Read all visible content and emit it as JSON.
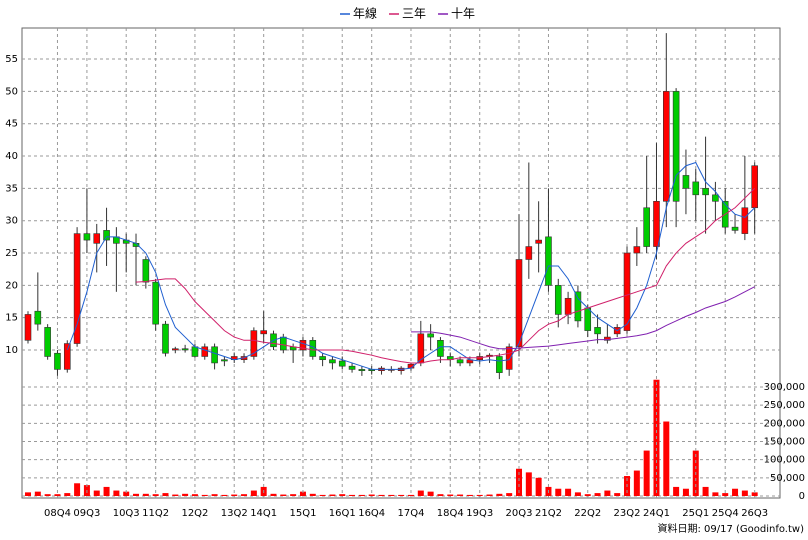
{
  "chart_data": [
    {
      "type": "candlestick",
      "categories": [
        null,
        null,
        null,
        "08Q4",
        null,
        null,
        "09Q3",
        null,
        null,
        null,
        "10Q3",
        null,
        null,
        "11Q2",
        null,
        null,
        null,
        "12Q2",
        null,
        null,
        null,
        "13Q2",
        null,
        null,
        "14Q1",
        null,
        null,
        null,
        "15Q1",
        null,
        null,
        null,
        "16Q1",
        null,
        null,
        "16Q4",
        null,
        null,
        null,
        "17Q4",
        null,
        null,
        null,
        "18Q4",
        null,
        null,
        "19Q3",
        null,
        null,
        null,
        "20Q3",
        null,
        null,
        "21Q2",
        null,
        null,
        null,
        "22Q2",
        null,
        null,
        null,
        "23Q2",
        null,
        null,
        "24Q1",
        null,
        null,
        null,
        "25Q1",
        null,
        null,
        "25Q4",
        null,
        null,
        "26Q3"
      ],
      "open": [
        11.5,
        16,
        13.5,
        9.5,
        7,
        11,
        28,
        26.5,
        28.5,
        27.5,
        27,
        26.5,
        24,
        20.5,
        14,
        10,
        10.2,
        10.5,
        9,
        10.5,
        8.5,
        8.5,
        8.5,
        9,
        12.5,
        12.5,
        12,
        10.5,
        10,
        11.5,
        9,
        8.5,
        8.3,
        7.5,
        7,
        7,
        6.8,
        7,
        6.8,
        7.2,
        8,
        12.5,
        11.5,
        9,
        8.5,
        8,
        8.5,
        9,
        9,
        7,
        10.5,
        24,
        26.5,
        27.5,
        20,
        15.5,
        19,
        16.5,
        13.5,
        11.5,
        12.5,
        13,
        25,
        32,
        26,
        33,
        50,
        37,
        36,
        35,
        34,
        33,
        29,
        28,
        32
      ],
      "high": [
        16,
        22,
        14,
        10,
        11.5,
        29,
        35,
        29.5,
        32,
        29,
        28,
        28,
        24.5,
        21,
        14.5,
        10.5,
        10.8,
        11,
        11,
        11,
        9,
        9.5,
        9.5,
        13.5,
        16,
        13,
        12.5,
        11,
        12,
        12,
        9.5,
        9,
        9,
        8,
        7.5,
        7.5,
        7.5,
        7.5,
        7.5,
        8,
        14.5,
        14,
        12,
        9.5,
        9,
        9,
        9.5,
        9.5,
        9.5,
        11,
        31,
        39,
        33,
        35,
        21,
        19,
        20,
        17,
        15.5,
        14,
        14,
        26,
        29,
        40,
        42,
        59,
        50.5,
        41,
        38,
        43,
        36,
        35,
        31,
        40,
        39
      ],
      "low": [
        11,
        13,
        8.5,
        6,
        6.5,
        10.5,
        25,
        22,
        23,
        19,
        22,
        20,
        19.5,
        13,
        9,
        9.5,
        9.6,
        8.8,
        8.5,
        7,
        7.5,
        8,
        8,
        8.5,
        11,
        10,
        9.5,
        8,
        9,
        8.5,
        7.5,
        7,
        7,
        6.5,
        6,
        6.2,
        6.2,
        6.5,
        6.2,
        6.8,
        7.5,
        10,
        8,
        7.5,
        7.5,
        7.5,
        7.8,
        8,
        5.5,
        6,
        9,
        21,
        22,
        19,
        13.5,
        14,
        13.5,
        12,
        11,
        11,
        12,
        12.5,
        23,
        25,
        24,
        29,
        29,
        31,
        30,
        28,
        30,
        28,
        28,
        27,
        28
      ],
      "close": [
        15.5,
        14,
        9,
        7,
        11,
        28,
        27,
        28,
        27,
        26.5,
        26.5,
        26,
        20.5,
        14,
        9.5,
        10.2,
        10,
        9,
        10.5,
        8,
        8.3,
        9,
        9,
        13,
        13,
        10.5,
        10,
        10,
        11.5,
        9,
        8.5,
        8,
        7.5,
        7,
        6.8,
        6.8,
        7.2,
        7,
        7.2,
        7.8,
        12.5,
        12,
        9,
        8.5,
        8,
        8.5,
        9,
        9.2,
        6.5,
        10.5,
        24,
        26,
        27,
        20,
        15.5,
        18,
        14.5,
        13,
        12.5,
        12,
        13.5,
        25,
        26,
        26,
        33,
        50,
        33,
        35,
        34,
        34,
        33,
        29,
        28.5,
        32,
        38.5
      ],
      "up_color": "#ff0000",
      "down_color": "#00cc00",
      "series": [
        {
          "name": "年線",
          "color": "#1f5fd0",
          "values": [
            null,
            null,
            null,
            null,
            10,
            14,
            19,
            25,
            27.5,
            27.5,
            27,
            26.5,
            25,
            22,
            17,
            13.5,
            12,
            10.5,
            10,
            9.5,
            9,
            8.5,
            8.8,
            9.5,
            10.5,
            11.5,
            12,
            11.5,
            11,
            10.5,
            9.5,
            9,
            8.5,
            8,
            7.5,
            7,
            7,
            7,
            7,
            7.2,
            8.5,
            9.5,
            10.5,
            10.5,
            9.5,
            8.5,
            8.3,
            8.5,
            8.3,
            8.5,
            11,
            15,
            19,
            23,
            23,
            21,
            18,
            16.5,
            15,
            14,
            13,
            14,
            16.5,
            20,
            25,
            32,
            37,
            38.5,
            39,
            36,
            34.5,
            32.5,
            31,
            30.5,
            32
          ]
        },
        {
          "name": "三年",
          "color": "#d0206a",
          "values": [
            null,
            null,
            null,
            null,
            null,
            null,
            null,
            null,
            null,
            null,
            null,
            20.5,
            20.6,
            20.8,
            21,
            21,
            19.5,
            17.5,
            16,
            14.5,
            13,
            12,
            11.5,
            11.5,
            11.2,
            11,
            10.8,
            10.5,
            10.3,
            10,
            10,
            10,
            10,
            9.8,
            9.5,
            9.2,
            8.8,
            8.5,
            8.2,
            8,
            8,
            8.3,
            8.5,
            8.5,
            8.8,
            8.8,
            8.8,
            9,
            9.2,
            9.5,
            10,
            11.5,
            13,
            14,
            14.5,
            15.5,
            16,
            16.5,
            17,
            17.5,
            18,
            18.5,
            19,
            19.5,
            20,
            23,
            25,
            26.5,
            27.5,
            28.5,
            30,
            31,
            32,
            33.5,
            35
          ]
        },
        {
          "name": "十年",
          "color": "#8020b0",
          "values": [
            null,
            null,
            null,
            null,
            null,
            null,
            null,
            null,
            null,
            null,
            null,
            null,
            null,
            null,
            null,
            null,
            null,
            null,
            null,
            null,
            null,
            null,
            null,
            null,
            null,
            null,
            null,
            null,
            null,
            null,
            null,
            null,
            null,
            null,
            null,
            null,
            null,
            null,
            null,
            12.8,
            12.8,
            12.8,
            12.6,
            12.3,
            12,
            11.5,
            11,
            10.5,
            10.2,
            10.2,
            10.3,
            10.4,
            10.5,
            10.6,
            10.8,
            11,
            11.2,
            11.4,
            11.6,
            11.6,
            11.8,
            12,
            12.2,
            12.5,
            13,
            13.8,
            14.5,
            15.2,
            15.8,
            16.5,
            17,
            17.5,
            18.2,
            19,
            19.8
          ]
        }
      ],
      "ylim": [
        5.3,
        59.8
      ],
      "yticks": [
        10,
        15,
        20,
        25,
        30,
        35,
        40,
        45,
        50,
        55
      ],
      "grid": true,
      "legend": "top"
    },
    {
      "type": "bar",
      "values": [
        10000,
        12000,
        5000,
        5000,
        8000,
        35000,
        30000,
        15000,
        25000,
        15000,
        12000,
        6000,
        6000,
        5000,
        8000,
        4000,
        6000,
        5000,
        3000,
        5000,
        3000,
        4000,
        5000,
        15000,
        25000,
        6000,
        4000,
        5000,
        12000,
        6000,
        3000,
        4000,
        5000,
        3000,
        3000,
        4000,
        3000,
        3000,
        3000,
        3000,
        15000,
        12000,
        5000,
        4000,
        4000,
        3000,
        3000,
        4000,
        6000,
        8000,
        75000,
        65000,
        50000,
        25000,
        20000,
        20000,
        10000,
        5000,
        8000,
        15000,
        8000,
        55000,
        70000,
        125000,
        320000,
        205000,
        25000,
        20000,
        125000,
        25000,
        10000,
        8000,
        20000,
        15000,
        10000
      ],
      "color": "#ff0000",
      "ylim": [
        0,
        319000
      ],
      "yticks": [
        0,
        {
          "value": 50000,
          "label": "50,000"
        },
        {
          "value": 100000,
          "label": "100,000"
        },
        {
          "value": 150000,
          "label": "150,000"
        },
        {
          "value": 200000,
          "label": "200,000"
        },
        {
          "value": 250000,
          "label": "250,000"
        },
        {
          "value": 300000,
          "label": "300,000"
        }
      ]
    }
  ],
  "footer": "資料日期: 09/17 (Goodinfo.tw)"
}
